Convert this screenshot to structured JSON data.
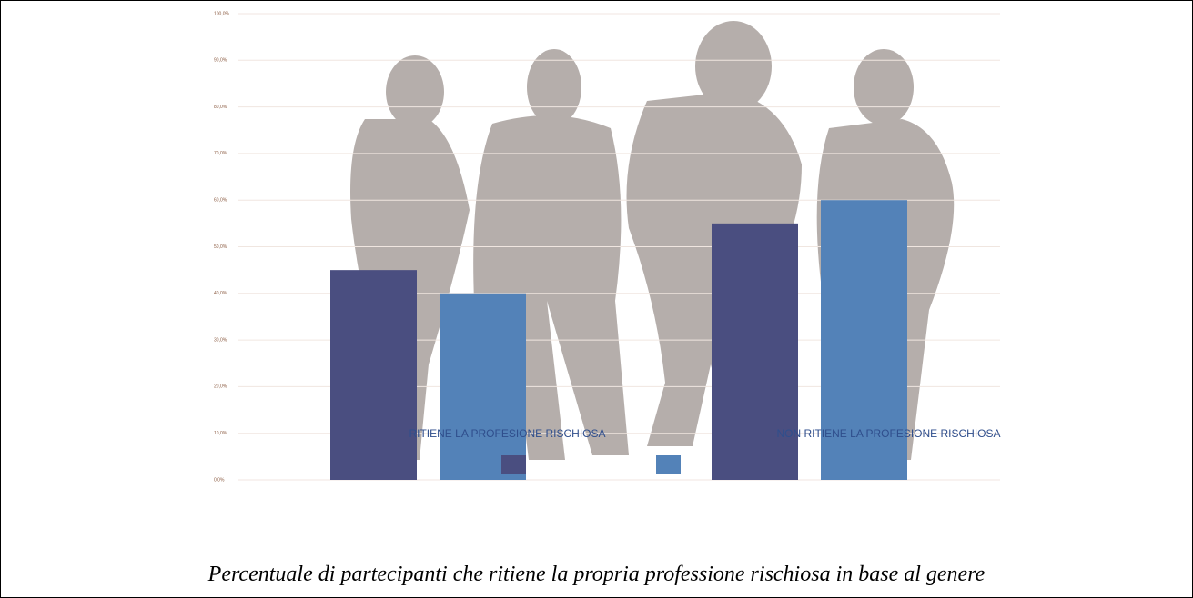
{
  "chart_data": {
    "type": "bar",
    "categories": [
      "RITIENE LA PROFESIONE RISCHIOSA",
      "NON RITIENE LA PROFESIONE RISCHIOSA"
    ],
    "series": [
      {
        "color": "#4a4e80",
        "values": [
          45,
          55
        ]
      },
      {
        "color": "#5382b8",
        "values": [
          40,
          60
        ]
      }
    ],
    "ylim": [
      0,
      100
    ],
    "yticks": [
      {
        "value": 0,
        "label": "0,0%"
      },
      {
        "value": 10,
        "label": "10,0%"
      },
      {
        "value": 20,
        "label": "20,0%"
      },
      {
        "value": 30,
        "label": "30,0%"
      },
      {
        "value": 40,
        "label": "40,0%"
      },
      {
        "value": 50,
        "label": "50,0%"
      },
      {
        "value": 60,
        "label": "60,0%"
      },
      {
        "value": 70,
        "label": "70,0%"
      },
      {
        "value": 80,
        "label": "80,0%"
      },
      {
        "value": 90,
        "label": "90,0%"
      },
      {
        "value": 100,
        "label": "100,0%"
      }
    ],
    "grid": true,
    "caption": "Percentuale di partecipanti che ritiene la propria professione rischiosa in base al genere"
  }
}
